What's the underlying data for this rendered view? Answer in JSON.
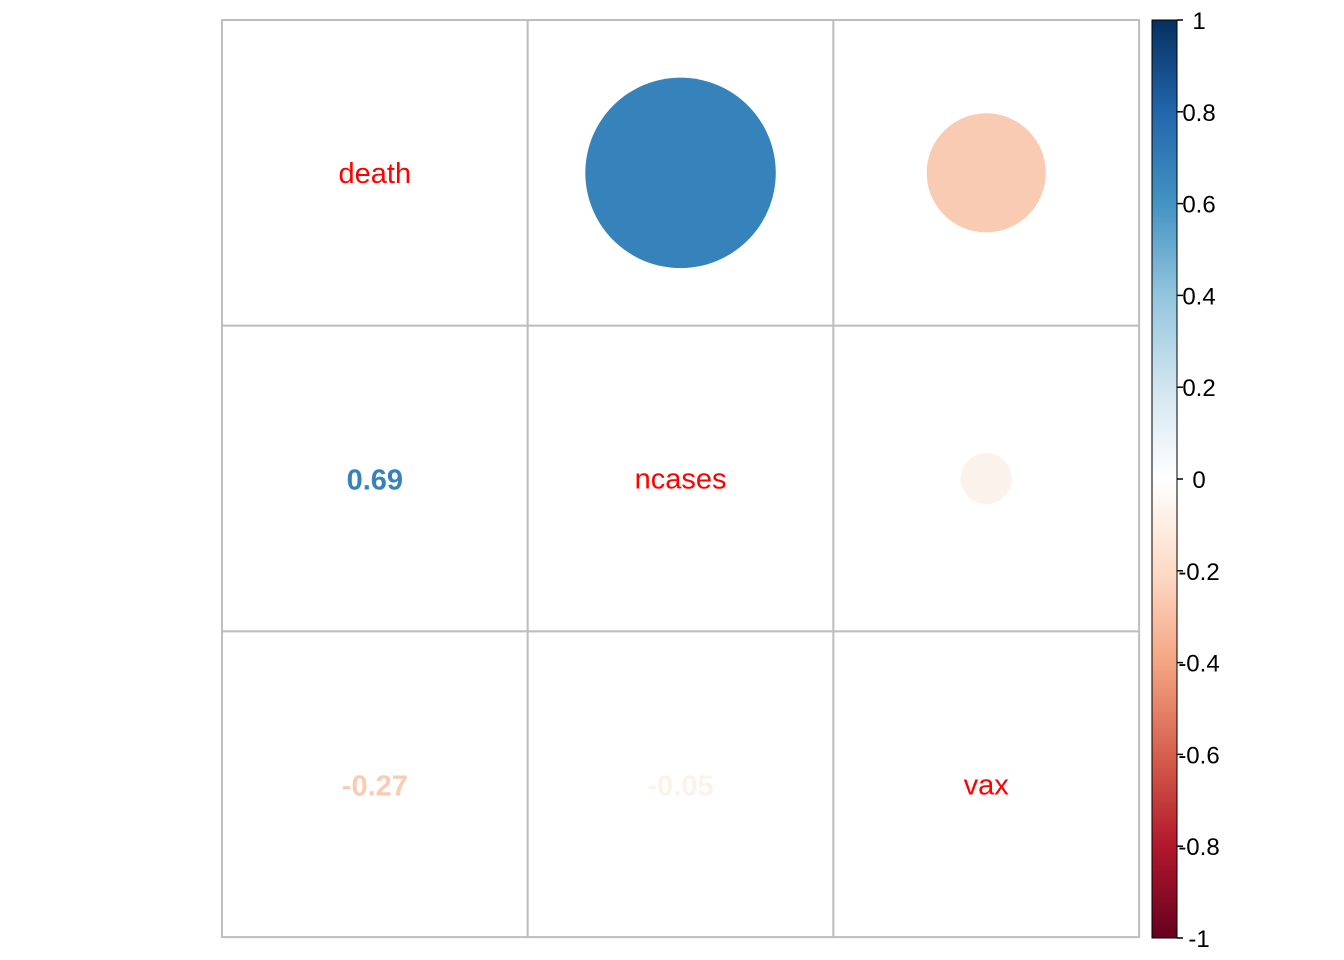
{
  "chart_data": {
    "type": "heatmap",
    "variables": [
      "death",
      "ncases",
      "vax"
    ],
    "matrix": [
      [
        1.0,
        0.69,
        -0.27
      ],
      [
        0.69,
        1.0,
        -0.05
      ],
      [
        -0.27,
        -0.05,
        1.0
      ]
    ],
    "upper_cells": [
      {
        "row": 0,
        "col": 1,
        "value": 0.69,
        "color": "#3682BA"
      },
      {
        "row": 0,
        "col": 2,
        "value": -0.27,
        "color": "#FACBB3"
      },
      {
        "row": 1,
        "col": 2,
        "value": -0.05,
        "color": "#FCF2EC"
      }
    ],
    "lower_cells": [
      {
        "row": 1,
        "col": 0,
        "label": "0.69",
        "color": "#3682BA"
      },
      {
        "row": 2,
        "col": 0,
        "label": "-0.27",
        "color": "#FACBB3"
      },
      {
        "row": 2,
        "col": 1,
        "label": "-0.05",
        "color": "#FCF2EC"
      }
    ],
    "diagonal_label_color": "#FF0000",
    "colorbar": {
      "range": [
        -1,
        1
      ],
      "ticks": [
        "1",
        "0.8",
        "0.6",
        "0.4",
        "0.2",
        "0",
        "-0.2",
        "-0.4",
        "-0.6",
        "-0.8",
        "-1"
      ],
      "colors_top_to_bottom": [
        "#053061",
        "#2166AC",
        "#4393C3",
        "#92C5DE",
        "#D1E5F0",
        "#FFFFFF",
        "#FDDBC7",
        "#F4A582",
        "#D6604D",
        "#B2182B",
        "#67001F"
      ]
    },
    "grid_color": "#BEBEBE"
  }
}
